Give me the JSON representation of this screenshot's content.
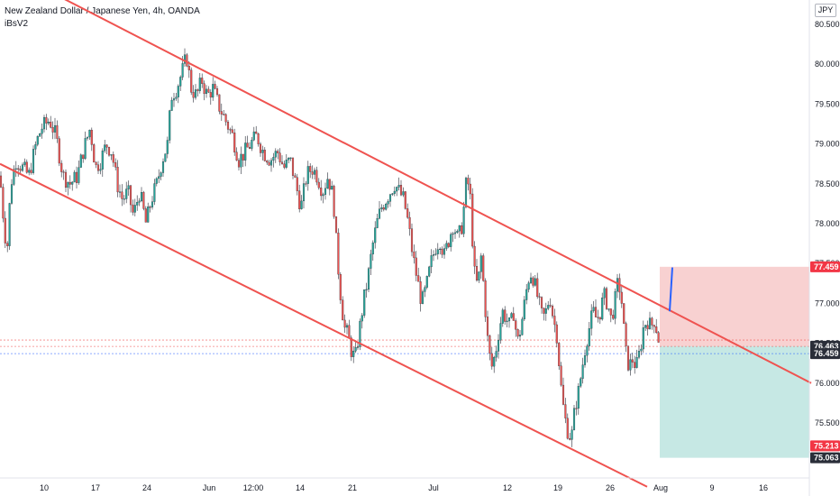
{
  "header": {
    "symbol_title": "New Zealand Dollar / Japanese Yen, 4h, OANDA",
    "indicator": "iBsV2",
    "currency_badge": "JPY"
  },
  "colors": {
    "channel": "#ef5350",
    "up_candle": "#26a69a",
    "down_candle": "#ef5350",
    "stop_zone": "#ef9a9a",
    "target_zone": "#80cbc4",
    "projection_line": "#2962ff",
    "label_red": "#f23645",
    "label_dark": "#2a2e39",
    "label_teal": "#26a69a"
  },
  "chart_data": {
    "type": "candlestick",
    "title": "New Zealand Dollar / Japanese Yen, 4h, OANDA",
    "ylim": [
      74.7,
      80.7
    ],
    "y_ticks": [
      75.5,
      76.0,
      76.5,
      77.0,
      77.5,
      78.0,
      78.5,
      79.0,
      79.5,
      80.0,
      80.5
    ],
    "y_tick_labels": [
      "75.500",
      "76.000",
      "76.500",
      "77.000",
      "77.500",
      "78.000",
      "78.500",
      "79.000",
      "79.500",
      "80.000",
      "80.500"
    ],
    "x_tick_labels": [
      "10",
      "17",
      "24",
      "Jun",
      "12:00",
      "14",
      "21",
      "Jul",
      "12",
      "19",
      "26",
      "Aug",
      "9",
      "16"
    ],
    "grid": false,
    "series": [
      {
        "name": "price",
        "close_points": [
          [
            0,
            78.6
          ],
          [
            5,
            77.9
          ],
          [
            8,
            77.7
          ],
          [
            12,
            78.5
          ],
          [
            18,
            78.8
          ],
          [
            25,
            78.7
          ],
          [
            32,
            78.6
          ],
          [
            40,
            79.0
          ],
          [
            46,
            79.2
          ],
          [
            55,
            79.3
          ],
          [
            62,
            79.1
          ],
          [
            70,
            78.6
          ],
          [
            78,
            78.5
          ],
          [
            86,
            78.6
          ],
          [
            92,
            78.9
          ],
          [
            100,
            79.2
          ],
          [
            106,
            78.7
          ],
          [
            112,
            78.8
          ],
          [
            118,
            79.0
          ],
          [
            124,
            78.9
          ],
          [
            130,
            78.5
          ],
          [
            136,
            78.3
          ],
          [
            142,
            78.4
          ],
          [
            148,
            78.1
          ],
          [
            155,
            78.4
          ],
          [
            162,
            78.0
          ],
          [
            168,
            78.3
          ],
          [
            174,
            78.5
          ],
          [
            180,
            78.8
          ],
          [
            186,
            79.0
          ],
          [
            190,
            79.6
          ],
          [
            196,
            79.7
          ],
          [
            202,
            79.9
          ],
          [
            207,
            80.1
          ],
          [
            212,
            79.7
          ],
          [
            218,
            79.6
          ],
          [
            224,
            79.8
          ],
          [
            230,
            79.6
          ],
          [
            236,
            79.7
          ],
          [
            242,
            79.5
          ],
          [
            250,
            79.3
          ],
          [
            258,
            79.1
          ],
          [
            265,
            78.8
          ],
          [
            272,
            78.9
          ],
          [
            278,
            79.0
          ],
          [
            285,
            79.1
          ],
          [
            292,
            78.9
          ],
          [
            300,
            78.8
          ],
          [
            308,
            78.9
          ],
          [
            315,
            78.7
          ],
          [
            322,
            78.8
          ],
          [
            328,
            78.5
          ],
          [
            334,
            78.2
          ],
          [
            340,
            78.6
          ],
          [
            346,
            78.7
          ],
          [
            352,
            78.6
          ],
          [
            358,
            78.4
          ],
          [
            364,
            78.6
          ],
          [
            370,
            78.3
          ],
          [
            374,
            77.6
          ],
          [
            378,
            77.1
          ],
          [
            382,
            76.7
          ],
          [
            386,
            76.6
          ],
          [
            390,
            76.4
          ],
          [
            394,
            76.3
          ],
          [
            398,
            76.6
          ],
          [
            403,
            77.0
          ],
          [
            408,
            77.3
          ],
          [
            413,
            77.7
          ],
          [
            418,
            78.0
          ],
          [
            423,
            78.2
          ],
          [
            428,
            78.3
          ],
          [
            433,
            78.4
          ],
          [
            438,
            78.5
          ],
          [
            443,
            78.4
          ],
          [
            448,
            78.3
          ],
          [
            453,
            78.0
          ],
          [
            458,
            77.6
          ],
          [
            463,
            77.3
          ],
          [
            468,
            77.0
          ],
          [
            473,
            77.2
          ],
          [
            478,
            77.5
          ],
          [
            483,
            77.7
          ],
          [
            488,
            77.8
          ],
          [
            493,
            77.6
          ],
          [
            498,
            77.8
          ],
          [
            503,
            78.0
          ],
          [
            508,
            77.8
          ],
          [
            513,
            78.0
          ],
          [
            518,
            78.6
          ],
          [
            522,
            78.3
          ],
          [
            526,
            77.4
          ],
          [
            530,
            77.2
          ],
          [
            534,
            77.6
          ],
          [
            538,
            77.0
          ],
          [
            542,
            76.4
          ],
          [
            546,
            76.2
          ],
          [
            550,
            76.4
          ],
          [
            554,
            76.7
          ],
          [
            558,
            76.9
          ],
          [
            562,
            76.8
          ],
          [
            566,
            76.7
          ],
          [
            570,
            76.9
          ],
          [
            574,
            76.5
          ],
          [
            578,
            76.7
          ],
          [
            582,
            77.0
          ],
          [
            586,
            77.3
          ],
          [
            590,
            77.4
          ],
          [
            594,
            77.2
          ],
          [
            598,
            77.0
          ],
          [
            602,
            76.8
          ],
          [
            606,
            76.9
          ],
          [
            610,
            77.1
          ],
          [
            614,
            76.8
          ],
          [
            618,
            76.6
          ],
          [
            622,
            76.0
          ],
          [
            626,
            75.6
          ],
          [
            630,
            75.4
          ],
          [
            634,
            75.3
          ],
          [
            638,
            75.7
          ],
          [
            642,
            75.9
          ],
          [
            646,
            76.2
          ],
          [
            650,
            76.5
          ],
          [
            654,
            76.7
          ],
          [
            658,
            76.9
          ],
          [
            662,
            76.8
          ],
          [
            666,
            76.9
          ],
          [
            670,
            77.1
          ],
          [
            674,
            77.0
          ],
          [
            678,
            76.8
          ],
          [
            682,
            77.0
          ],
          [
            686,
            77.3
          ],
          [
            690,
            77.0
          ],
          [
            694,
            76.4
          ],
          [
            698,
            76.2
          ],
          [
            702,
            76.3
          ],
          [
            706,
            76.2
          ],
          [
            710,
            76.4
          ],
          [
            714,
            76.7
          ],
          [
            718,
            76.8
          ],
          [
            722,
            76.7
          ],
          [
            726,
            76.8
          ],
          [
            730,
            76.6
          ],
          [
            732,
            76.45
          ]
        ]
      },
      {
        "name": "projection",
        "points": [
          [
            743,
            76.9
          ],
          [
            746,
            77.45
          ]
        ]
      }
    ],
    "channel_lines": [
      {
        "name": "upper",
        "from": [
          40,
          81.0
        ],
        "to": [
          900,
          76.0
        ]
      },
      {
        "name": "lower",
        "from": [
          0,
          78.75
        ],
        "to": [
          718,
          74.7
        ]
      }
    ],
    "zones": [
      {
        "name": "stop",
        "y_from": 76.463,
        "y_to": 77.459,
        "x_from": 732,
        "x_to": 898
      },
      {
        "name": "target",
        "y_from": 75.063,
        "y_to": 76.463,
        "x_from": 732,
        "x_to": 898
      }
    ],
    "price_labels": [
      {
        "value": "77.459",
        "y": 77.459,
        "color": "label_red"
      },
      {
        "value": "76.463",
        "y": 76.463,
        "color": "label_dark"
      },
      {
        "value": "76.459",
        "y": 76.37,
        "color": "label_dark"
      },
      {
        "value": "75.213",
        "y": 75.213,
        "color": "label_red"
      },
      {
        "value": "75.063",
        "y": 75.063,
        "color": "label_dark"
      }
    ]
  }
}
